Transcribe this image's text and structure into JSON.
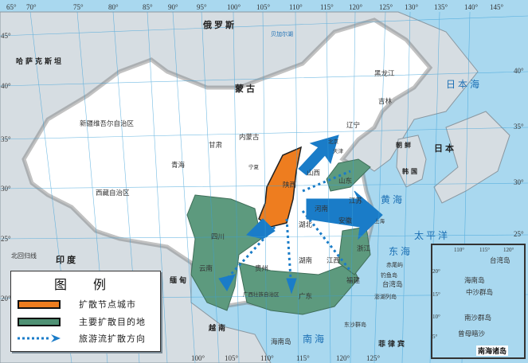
{
  "legend": {
    "title": "图 例",
    "items": [
      {
        "label": "扩散节点城市",
        "color": "#ee7d1f"
      },
      {
        "label": "主要扩散目的地",
        "color": "#4f9174"
      },
      {
        "label": "旅游流扩散方向",
        "color": "#1a7cc8"
      }
    ]
  },
  "colors": {
    "sea": "#a9d8ef",
    "foreign_land": "#d6dde2",
    "china": "#ffffff",
    "node": "#ee7d1f",
    "destination": "#5d9a7e",
    "arrow": "#1a7cc8"
  },
  "axes": {
    "top_lon": [
      "65°",
      "70°",
      "75°",
      "80°",
      "85°",
      "90°",
      "95°",
      "100°",
      "105°",
      "110°",
      "115°",
      "120°",
      "125°",
      "130°",
      "135°",
      "140°",
      "145°"
    ],
    "bottom_lon": [
      "100°",
      "105°",
      "110°",
      "115°",
      "120°",
      "125°"
    ],
    "left_lat": [
      "45°",
      "40°",
      "35°",
      "30°",
      "25°",
      "20°"
    ],
    "right_lat": [
      "40°",
      "35°",
      "30°",
      "25°"
    ]
  },
  "countries": [
    "俄罗斯",
    "蒙古",
    "哈萨克斯坦",
    "印度",
    "日本",
    "朝鲜",
    "韩国",
    "缅甸",
    "越南",
    "菲律宾"
  ],
  "labels": {
    "lake": "贝加尔湖",
    "provinces": [
      "新疆维吾尔自治区",
      "西藏自治区",
      "青海",
      "甘肃",
      "内蒙古",
      "黑龙江",
      "吉林",
      "辽宁",
      "四川",
      "贵州",
      "湖南",
      "湖北",
      "江西",
      "陕西",
      "山西",
      "河南",
      "安徽",
      "浙江",
      "福建",
      "广东",
      "广西壮族自治区",
      "云南",
      "宁夏",
      "北京",
      "天津",
      "山东",
      "江苏",
      "上海",
      "台湾岛",
      "海南岛"
    ],
    "seas": [
      "黄海",
      "东海",
      "南海",
      "日本海",
      "太平洋"
    ],
    "tropic": "北回归线",
    "islands": [
      "赤尾屿",
      "钓鱼岛",
      "东沙群岛",
      "澎湖列岛"
    ]
  },
  "inset": {
    "title": "南海诸岛",
    "lon": [
      "110°",
      "115°",
      "120°",
      "110°"
    ],
    "lat": [
      "20°",
      "15°",
      "10°",
      "5°"
    ],
    "labels": [
      "海南岛",
      "中沙群岛",
      "南沙群岛",
      "台湾岛",
      "曾母暗沙"
    ]
  }
}
